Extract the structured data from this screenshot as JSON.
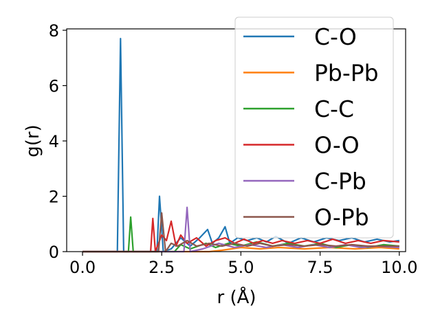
{
  "chart_data": {
    "type": "line",
    "title": "",
    "xlabel": "r (Å)",
    "ylabel": "g(r)",
    "xlim": [
      -0.5,
      10.2
    ],
    "ylim": [
      0,
      8.05
    ],
    "xticks": [
      0.0,
      2.5,
      5.0,
      7.5,
      10.0
    ],
    "xtick_labels": [
      "0.0",
      "2.5",
      "5.0",
      "7.5",
      "10.0"
    ],
    "yticks": [
      0,
      2,
      4,
      6,
      8
    ],
    "ytick_labels": [
      "0",
      "2",
      "4",
      "6",
      "8"
    ],
    "grid": false,
    "legend_position": "top-right",
    "series": [
      {
        "name": "C-O",
        "color": "#1f77b4",
        "points": [
          [
            0,
            0
          ],
          [
            1.1,
            0
          ],
          [
            1.2,
            7.7
          ],
          [
            1.3,
            0
          ],
          [
            2.35,
            0
          ],
          [
            2.43,
            2.0
          ],
          [
            2.55,
            0
          ],
          [
            2.8,
            0.1
          ],
          [
            3.1,
            0.5
          ],
          [
            3.4,
            0.2
          ],
          [
            3.7,
            0.5
          ],
          [
            3.95,
            0.8
          ],
          [
            4.1,
            0.3
          ],
          [
            4.3,
            0.5
          ],
          [
            4.5,
            0.9
          ],
          [
            4.65,
            0.3
          ],
          [
            4.9,
            0.5
          ],
          [
            5.2,
            0.4
          ],
          [
            5.5,
            0.5
          ],
          [
            5.8,
            0.35
          ],
          [
            6.1,
            0.55
          ],
          [
            6.5,
            0.3
          ],
          [
            6.9,
            0.5
          ],
          [
            7.3,
            0.35
          ],
          [
            7.7,
            0.5
          ],
          [
            8.1,
            0.4
          ],
          [
            8.5,
            0.5
          ],
          [
            8.9,
            0.35
          ],
          [
            9.3,
            0.45
          ],
          [
            9.7,
            0.35
          ],
          [
            10.0,
            0.4
          ]
        ]
      },
      {
        "name": "Pb-Pb",
        "color": "#ff7f0e",
        "points": [
          [
            0,
            0
          ],
          [
            4.0,
            0
          ],
          [
            4.4,
            0.05
          ],
          [
            5.0,
            0.15
          ],
          [
            5.6,
            0.1
          ],
          [
            6.2,
            0.15
          ],
          [
            7.0,
            0.1
          ],
          [
            7.8,
            0.15
          ],
          [
            8.6,
            0.1
          ],
          [
            9.4,
            0.15
          ],
          [
            10.0,
            0.1
          ]
        ]
      },
      {
        "name": "C-C",
        "color": "#2ca02c",
        "points": [
          [
            0,
            0
          ],
          [
            1.45,
            0
          ],
          [
            1.52,
            1.25
          ],
          [
            1.6,
            0
          ],
          [
            2.9,
            0
          ],
          [
            3.1,
            0.25
          ],
          [
            3.4,
            0.1
          ],
          [
            3.9,
            0.3
          ],
          [
            4.2,
            0.15
          ],
          [
            4.6,
            0.3
          ],
          [
            5.0,
            0.2
          ],
          [
            5.5,
            0.35
          ],
          [
            6.0,
            0.2
          ],
          [
            6.5,
            0.3
          ],
          [
            7.0,
            0.2
          ],
          [
            7.5,
            0.3
          ],
          [
            8.0,
            0.15
          ],
          [
            8.5,
            0.25
          ],
          [
            9.0,
            0.15
          ],
          [
            9.5,
            0.25
          ],
          [
            10.0,
            0.2
          ]
        ]
      },
      {
        "name": "O-O",
        "color": "#d62728",
        "points": [
          [
            0,
            0
          ],
          [
            2.15,
            0
          ],
          [
            2.22,
            1.2
          ],
          [
            2.3,
            0
          ],
          [
            2.5,
            0.6
          ],
          [
            2.65,
            0.4
          ],
          [
            2.8,
            1.1
          ],
          [
            2.95,
            0.2
          ],
          [
            3.1,
            0.6
          ],
          [
            3.3,
            0.3
          ],
          [
            3.6,
            0.5
          ],
          [
            3.9,
            0.2
          ],
          [
            4.2,
            0.4
          ],
          [
            4.5,
            0.5
          ],
          [
            4.8,
            0.3
          ],
          [
            5.1,
            0.45
          ],
          [
            5.4,
            0.3
          ],
          [
            5.7,
            0.4
          ],
          [
            6.0,
            0.3
          ],
          [
            6.3,
            0.4
          ],
          [
            6.7,
            0.3
          ],
          [
            7.1,
            0.4
          ],
          [
            7.5,
            0.3
          ],
          [
            7.9,
            0.45
          ],
          [
            8.3,
            0.3
          ],
          [
            8.7,
            0.4
          ],
          [
            9.1,
            0.3
          ],
          [
            9.5,
            0.4
          ],
          [
            10.0,
            0.35
          ]
        ]
      },
      {
        "name": "C-Pb",
        "color": "#9467bd",
        "points": [
          [
            0,
            0
          ],
          [
            3.2,
            0
          ],
          [
            3.3,
            1.6
          ],
          [
            3.4,
            0
          ],
          [
            3.8,
            0.1
          ],
          [
            4.3,
            0.3
          ],
          [
            4.8,
            0.15
          ],
          [
            5.3,
            0.25
          ],
          [
            5.8,
            0.15
          ],
          [
            6.3,
            0.25
          ],
          [
            6.8,
            0.15
          ],
          [
            7.3,
            0.25
          ],
          [
            7.8,
            0.15
          ],
          [
            8.3,
            0.25
          ],
          [
            8.8,
            0.15
          ],
          [
            9.3,
            0.2
          ],
          [
            10.0,
            0.15
          ]
        ]
      },
      {
        "name": "O-Pb",
        "color": "#8c564b",
        "points": [
          [
            0,
            0
          ],
          [
            2.4,
            0
          ],
          [
            2.5,
            1.4
          ],
          [
            2.62,
            0
          ],
          [
            2.8,
            0.3
          ],
          [
            3.0,
            0.2
          ],
          [
            3.3,
            0.4
          ],
          [
            3.6,
            0.2
          ],
          [
            4.0,
            0.3
          ],
          [
            4.4,
            0.2
          ],
          [
            4.8,
            0.3
          ],
          [
            5.2,
            0.2
          ],
          [
            5.6,
            0.3
          ],
          [
            6.0,
            0.2
          ],
          [
            6.5,
            0.25
          ],
          [
            7.0,
            0.2
          ],
          [
            7.5,
            0.25
          ],
          [
            8.0,
            0.2
          ],
          [
            8.5,
            0.25
          ],
          [
            9.0,
            0.2
          ],
          [
            9.5,
            0.2
          ],
          [
            10.0,
            0.2
          ]
        ]
      }
    ]
  }
}
